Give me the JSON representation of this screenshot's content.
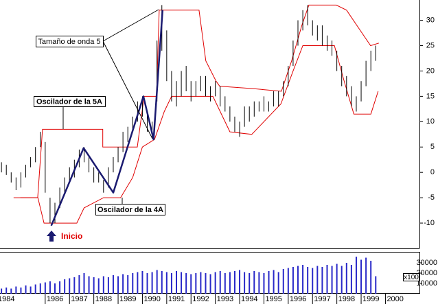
{
  "chart_data": [
    {
      "type": "stock",
      "x": [
        1984.2,
        1984.4,
        1984.6,
        1984.8,
        1985.0,
        1985.2,
        1985.4,
        1985.6,
        1985.8,
        1986.0,
        1986.2,
        1986.4,
        1986.6,
        1986.8,
        1987.0,
        1987.2,
        1987.4,
        1987.6,
        1987.8,
        1988.0,
        1988.2,
        1988.4,
        1988.6,
        1988.8,
        1989.0,
        1989.2,
        1989.4,
        1989.6,
        1989.8,
        1990.0,
        1990.2,
        1990.4,
        1990.6,
        1990.8,
        1991.0,
        1991.2,
        1991.4,
        1991.6,
        1991.8,
        1992.0,
        1992.2,
        1992.4,
        1992.6,
        1992.8,
        1993.0,
        1993.2,
        1993.4,
        1993.6,
        1993.8,
        1994.0,
        1994.2,
        1994.4,
        1994.6,
        1994.8,
        1995.0,
        1995.2,
        1995.4,
        1995.6,
        1995.8,
        1996.0,
        1996.2,
        1996.4,
        1996.6,
        1996.8,
        1997.0,
        1997.2,
        1997.4,
        1997.6,
        1997.8,
        1998.0,
        1998.2,
        1998.4,
        1998.6,
        1998.8,
        1999.0,
        1999.2,
        1999.4,
        1999.6
      ],
      "high": [
        2,
        1.5,
        0,
        -1,
        0,
        1.5,
        3,
        5,
        8,
        6,
        -5,
        -6,
        -3,
        -1,
        1,
        2.5,
        4.5,
        5,
        3,
        1,
        0,
        -1.5,
        1,
        3,
        5,
        8,
        9,
        11,
        14,
        15,
        12,
        10,
        26,
        33,
        28,
        20,
        18,
        20,
        21,
        18,
        18,
        19,
        19,
        17,
        18,
        17,
        15,
        13,
        11,
        10,
        13,
        13,
        14,
        14,
        15,
        14,
        16,
        16,
        18,
        21,
        26,
        30,
        32,
        33,
        30,
        29,
        29,
        27,
        26,
        24,
        21,
        19,
        17,
        15,
        18,
        22,
        24,
        25
      ],
      "low": [
        0,
        -0.5,
        -2,
        -3.5,
        -3,
        -1,
        1,
        2,
        5,
        -4,
        -10,
        -10,
        -7,
        -4,
        -2,
        -1,
        1,
        2,
        0,
        -2,
        -2,
        -4,
        -3,
        0,
        2,
        4,
        6,
        8,
        10,
        11,
        8,
        7,
        14,
        24,
        18,
        14,
        13,
        15,
        16,
        14,
        15,
        16,
        15,
        14,
        15,
        13,
        12,
        10,
        8,
        7,
        9,
        10,
        11,
        12,
        12,
        12,
        13,
        13,
        15,
        17,
        21,
        25,
        28,
        29,
        27,
        26,
        25,
        24,
        23,
        20,
        17,
        15,
        13,
        12,
        14,
        17,
        20,
        22
      ],
      "color": "#000000",
      "xlim": [
        1984.14,
        2001.4
      ],
      "ylim": [
        -15,
        34
      ],
      "yticks": [
        -10,
        -5,
        0,
        5,
        10,
        15,
        20,
        25,
        30
      ],
      "envelopes": [
        {
          "color": "#e00000",
          "x": [
            1984.98,
            1985.69,
            1985.89,
            1988.37,
            1988.37,
            1989.79,
            1990.07,
            1990.58,
            1990.69,
            1992.33,
            1992.61,
            1993.03,
            1993.18,
            1994.59,
            1995.72,
            1996.14,
            1996.56,
            1996.85,
            1997.98,
            1998.4,
            1998.82,
            1999.39,
            1999.73
          ],
          "values": [
            -5,
            -5,
            8.5,
            8.5,
            5,
            5,
            15,
            15,
            32,
            32,
            22,
            18,
            17,
            16.5,
            16,
            22,
            29,
            33,
            33,
            32,
            29,
            25,
            25.5
          ]
        },
        {
          "color": "#e00000",
          "x": [
            1984.7,
            1985.7,
            1985.95,
            1987.3,
            1987.6,
            1988.4,
            1989.1,
            1989.6,
            1990.0,
            1990.5,
            1990.9,
            1991.2,
            1992.9,
            1993.2,
            1993.6,
            1994.5,
            1995.0,
            1995.7,
            1996.2,
            1996.6,
            1997.9,
            1998.3,
            1998.7,
            1999.4,
            1999.7
          ],
          "values": [
            -5,
            -5,
            -10,
            -10,
            -7,
            -5,
            -5,
            -1,
            5,
            6.5,
            12,
            15,
            15,
            12,
            8,
            7.5,
            10,
            13.5,
            20,
            25,
            25,
            18,
            11.5,
            11.5,
            16
          ]
        }
      ],
      "wave": {
        "color": "#1a1a70",
        "x": [
          1986.25,
          1987.58,
          1988.8,
          1990.04,
          1990.46,
          1990.83
        ],
        "values": [
          -10.5,
          4.8,
          -4,
          15,
          6.5,
          32
        ]
      },
      "annotations": [
        "Tamaño de onda 5",
        "Oscilador de la 5A",
        "Oscilador de la 4A",
        "Inicio"
      ]
    },
    {
      "type": "bar",
      "x": [
        1984.2,
        1984.4,
        1984.6,
        1984.8,
        1985.0,
        1985.2,
        1985.4,
        1985.6,
        1985.8,
        1986.0,
        1986.2,
        1986.4,
        1986.6,
        1986.8,
        1987.0,
        1987.2,
        1987.4,
        1987.6,
        1987.8,
        1988.0,
        1988.2,
        1988.4,
        1988.6,
        1988.8,
        1989.0,
        1989.2,
        1989.4,
        1989.6,
        1989.8,
        1990.0,
        1990.2,
        1990.4,
        1990.6,
        1990.8,
        1991.0,
        1991.2,
        1991.4,
        1991.6,
        1991.8,
        1992.0,
        1992.2,
        1992.4,
        1992.6,
        1992.8,
        1993.0,
        1993.2,
        1993.4,
        1993.6,
        1993.8,
        1994.0,
        1994.2,
        1994.4,
        1994.6,
        1994.8,
        1995.0,
        1995.2,
        1995.4,
        1995.6,
        1995.8,
        1996.0,
        1996.2,
        1996.4,
        1996.6,
        1996.8,
        1997.0,
        1997.2,
        1997.4,
        1997.6,
        1997.8,
        1998.0,
        1998.2,
        1998.4,
        1998.6,
        1998.8,
        1999.0,
        1999.2,
        1999.4,
        1999.6
      ],
      "values": [
        5000,
        6000,
        5000,
        7000,
        6000,
        8000,
        7000,
        9000,
        10000,
        11000,
        12000,
        10000,
        12000,
        14000,
        15000,
        16000,
        18000,
        20000,
        17000,
        16000,
        15000,
        17000,
        16000,
        18000,
        17000,
        19000,
        18000,
        20000,
        21000,
        22000,
        20000,
        21000,
        23000,
        22000,
        21000,
        20000,
        22000,
        21000,
        20000,
        19000,
        20000,
        21000,
        20000,
        19000,
        21000,
        22000,
        20000,
        21000,
        22000,
        23000,
        21000,
        20000,
        22000,
        21000,
        20000,
        22000,
        23000,
        21000,
        24000,
        25000,
        26000,
        27000,
        28000,
        26000,
        25000,
        27000,
        26000,
        28000,
        27000,
        29000,
        27000,
        30000,
        28000,
        36000,
        33000,
        35000,
        32000,
        17000
      ],
      "color": "#2828c8",
      "xlim": [
        1984.14,
        2001.4
      ],
      "ylim": [
        0,
        40000
      ],
      "yticks": [
        10000,
        20000,
        30000
      ],
      "ylabel": "x100",
      "xticks": [
        1984,
        1986,
        1987,
        1988,
        1989,
        1990,
        1991,
        1992,
        1993,
        1994,
        1995,
        1996,
        1997,
        1998,
        1999,
        2000
      ]
    }
  ]
}
